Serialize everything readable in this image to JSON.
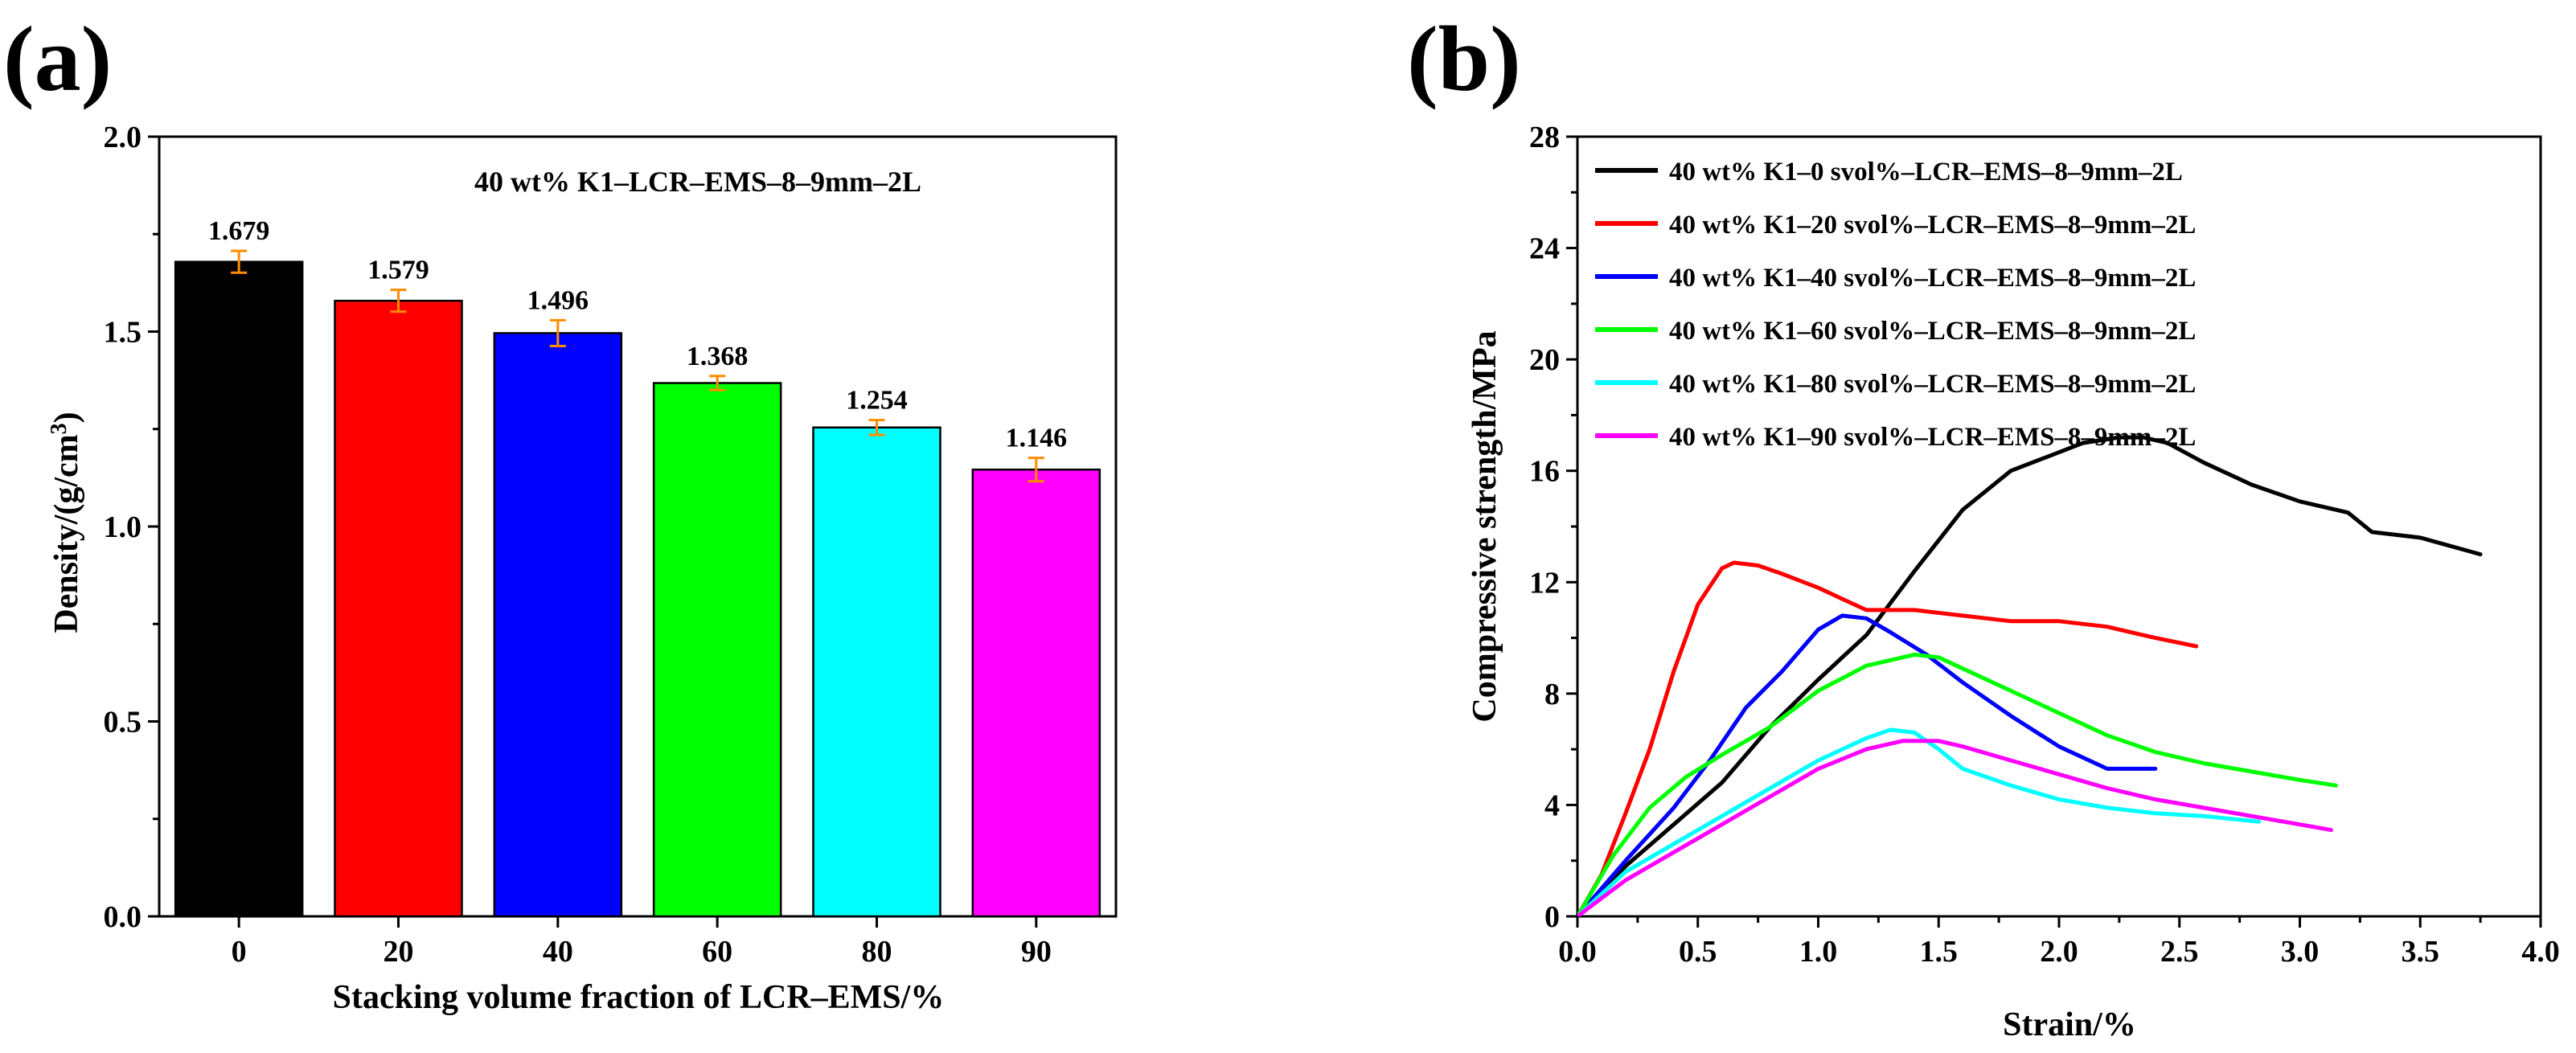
{
  "panels": {
    "a": {
      "label": "(a)"
    },
    "b": {
      "label": "(b)"
    }
  },
  "chart_data": [
    {
      "type": "bar",
      "panel": "a",
      "title": "40 wt% K1–LCR–EMS–8–9mm–2L",
      "xlabel": "Stacking volume fraction of LCR–EMS/%",
      "ylabel": "Density/(g/cm",
      "ylabel_sup": "3",
      "ylabel_end": ")",
      "categories": [
        "0",
        "20",
        "40",
        "60",
        "80",
        "90"
      ],
      "values": [
        1.679,
        1.579,
        1.496,
        1.368,
        1.254,
        1.146
      ],
      "value_labels": [
        "1.679",
        "1.579",
        "1.496",
        "1.368",
        "1.254",
        "1.146"
      ],
      "errors": [
        0.028,
        0.028,
        0.033,
        0.018,
        0.019,
        0.03
      ],
      "colors": [
        "#000000",
        "#ff0000",
        "#0000ff",
        "#00ff00",
        "#00ffff",
        "#ff00ff"
      ],
      "error_color": "#ff8c00",
      "ylim": [
        0,
        2.0
      ],
      "yticks": [
        "0.0",
        "0.5",
        "1.0",
        "1.5",
        "2.0"
      ],
      "ytick_values": [
        0,
        0.5,
        1.0,
        1.5,
        2.0
      ]
    },
    {
      "type": "line",
      "panel": "b",
      "xlabel": "Strain/%",
      "ylabel": "Compressive strength/MPa",
      "xlim": [
        0,
        4.0
      ],
      "ylim": [
        0,
        28
      ],
      "xticks": [
        "0.0",
        "0.5",
        "1.0",
        "1.5",
        "2.0",
        "2.5",
        "3.0",
        "3.5",
        "4.0"
      ],
      "xtick_values": [
        0,
        0.5,
        1.0,
        1.5,
        2.0,
        2.5,
        3.0,
        3.5,
        4.0
      ],
      "yticks": [
        "0",
        "4",
        "8",
        "12",
        "16",
        "20",
        "24",
        "28"
      ],
      "ytick_values": [
        0,
        4,
        8,
        12,
        16,
        20,
        24,
        28
      ],
      "legend_position": "top-left",
      "series": [
        {
          "name": "40 wt% K1–0 svol%–LCR–EMS–8–9mm–2L",
          "color": "#000000",
          "x": [
            0,
            0.2,
            0.4,
            0.6,
            0.8,
            1.0,
            1.2,
            1.4,
            1.6,
            1.8,
            1.95,
            2.1,
            2.25,
            2.35,
            2.45,
            2.6,
            2.8,
            3.0,
            3.2,
            3.3,
            3.5,
            3.75
          ],
          "y": [
            0,
            1.8,
            3.3,
            4.8,
            6.8,
            8.5,
            10.1,
            12.4,
            14.6,
            16.0,
            16.5,
            17.0,
            17.2,
            17.2,
            17.0,
            16.3,
            15.5,
            14.9,
            14.5,
            13.8,
            13.6,
            13.0
          ]
        },
        {
          "name": "40 wt% K1–20 svol%–LCR–EMS–8–9mm–2L",
          "color": "#ff0000",
          "x": [
            0,
            0.1,
            0.2,
            0.3,
            0.4,
            0.5,
            0.6,
            0.65,
            0.75,
            0.85,
            1.0,
            1.1,
            1.2,
            1.4,
            1.6,
            1.8,
            2.0,
            2.2,
            2.4,
            2.57
          ],
          "y": [
            0,
            1.5,
            3.7,
            6.0,
            8.8,
            11.2,
            12.5,
            12.7,
            12.6,
            12.3,
            11.8,
            11.4,
            11.0,
            11.0,
            10.8,
            10.6,
            10.6,
            10.4,
            10.0,
            9.7
          ]
        },
        {
          "name": "40 wt% K1–40 svol%–LCR–EMS–8–9mm–2L",
          "color": "#0000ff",
          "x": [
            0,
            0.2,
            0.4,
            0.55,
            0.7,
            0.85,
            1.0,
            1.1,
            1.2,
            1.3,
            1.45,
            1.6,
            1.8,
            2.0,
            2.2,
            2.4
          ],
          "y": [
            0,
            2.0,
            3.9,
            5.6,
            7.5,
            8.8,
            10.3,
            10.8,
            10.7,
            10.2,
            9.4,
            8.4,
            7.2,
            6.1,
            5.3,
            5.3
          ]
        },
        {
          "name": "40 wt% K1–60 svol%–LCR–EMS–8–9mm–2L",
          "color": "#00ff00",
          "x": [
            0,
            0.15,
            0.3,
            0.45,
            0.6,
            0.8,
            1.0,
            1.2,
            1.4,
            1.5,
            1.6,
            1.8,
            2.0,
            2.2,
            2.4,
            2.6,
            2.8,
            3.0,
            3.15
          ],
          "y": [
            0,
            2.2,
            3.9,
            5.0,
            5.8,
            6.8,
            8.1,
            9.0,
            9.4,
            9.3,
            8.9,
            8.1,
            7.3,
            6.5,
            5.9,
            5.5,
            5.2,
            4.9,
            4.7
          ]
        },
        {
          "name": "40 wt% K1–80 svol%–LCR–EMS–8–9mm–2L",
          "color": "#00ffff",
          "x": [
            0,
            0.2,
            0.4,
            0.6,
            0.8,
            1.0,
            1.2,
            1.3,
            1.4,
            1.5,
            1.6,
            1.8,
            2.0,
            2.2,
            2.4,
            2.6,
            2.83
          ],
          "y": [
            0,
            1.6,
            2.6,
            3.6,
            4.6,
            5.6,
            6.4,
            6.7,
            6.6,
            6.0,
            5.3,
            4.7,
            4.2,
            3.9,
            3.7,
            3.6,
            3.4
          ]
        },
        {
          "name": "40 wt% K1–90 svol%–LCR–EMS–8–9mm–2L",
          "color": "#ff00ff",
          "x": [
            0,
            0.2,
            0.4,
            0.6,
            0.8,
            1.0,
            1.2,
            1.35,
            1.5,
            1.6,
            1.8,
            2.0,
            2.2,
            2.4,
            2.6,
            2.8,
            3.0,
            3.13
          ],
          "y": [
            0,
            1.3,
            2.3,
            3.3,
            4.3,
            5.3,
            6.0,
            6.3,
            6.3,
            6.1,
            5.6,
            5.1,
            4.6,
            4.2,
            3.9,
            3.6,
            3.3,
            3.1
          ]
        }
      ]
    }
  ]
}
